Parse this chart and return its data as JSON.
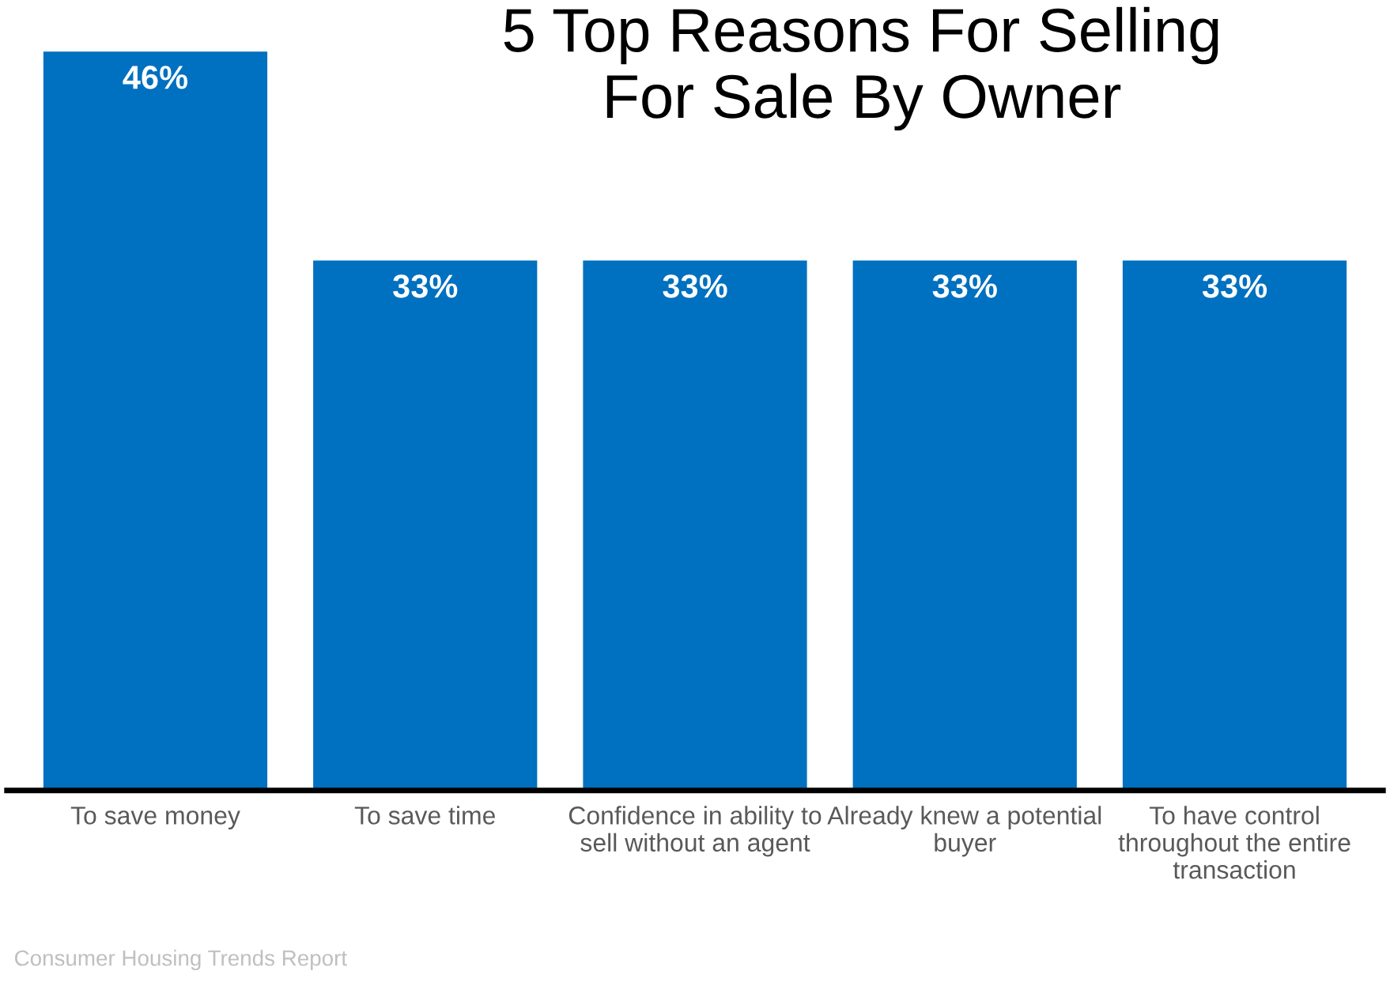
{
  "chart_data": {
    "type": "bar",
    "title": "5 Top Reasons For Selling\nFor Sale By Owner",
    "categories": [
      "To save money",
      "To save time",
      "Confidence in ability to\nsell without an agent",
      "Already knew a potential\nbuyer",
      "To have control\nthroughout the entire\ntransaction"
    ],
    "values": [
      46,
      33,
      33,
      33,
      33
    ],
    "color": "#0070c0",
    "value_labels": [
      "46%",
      "33%",
      "33%",
      "33%",
      "33%"
    ],
    "grid": false,
    "legend": false,
    "annotations": [
      "Consumer Housing Trends Report"
    ]
  }
}
